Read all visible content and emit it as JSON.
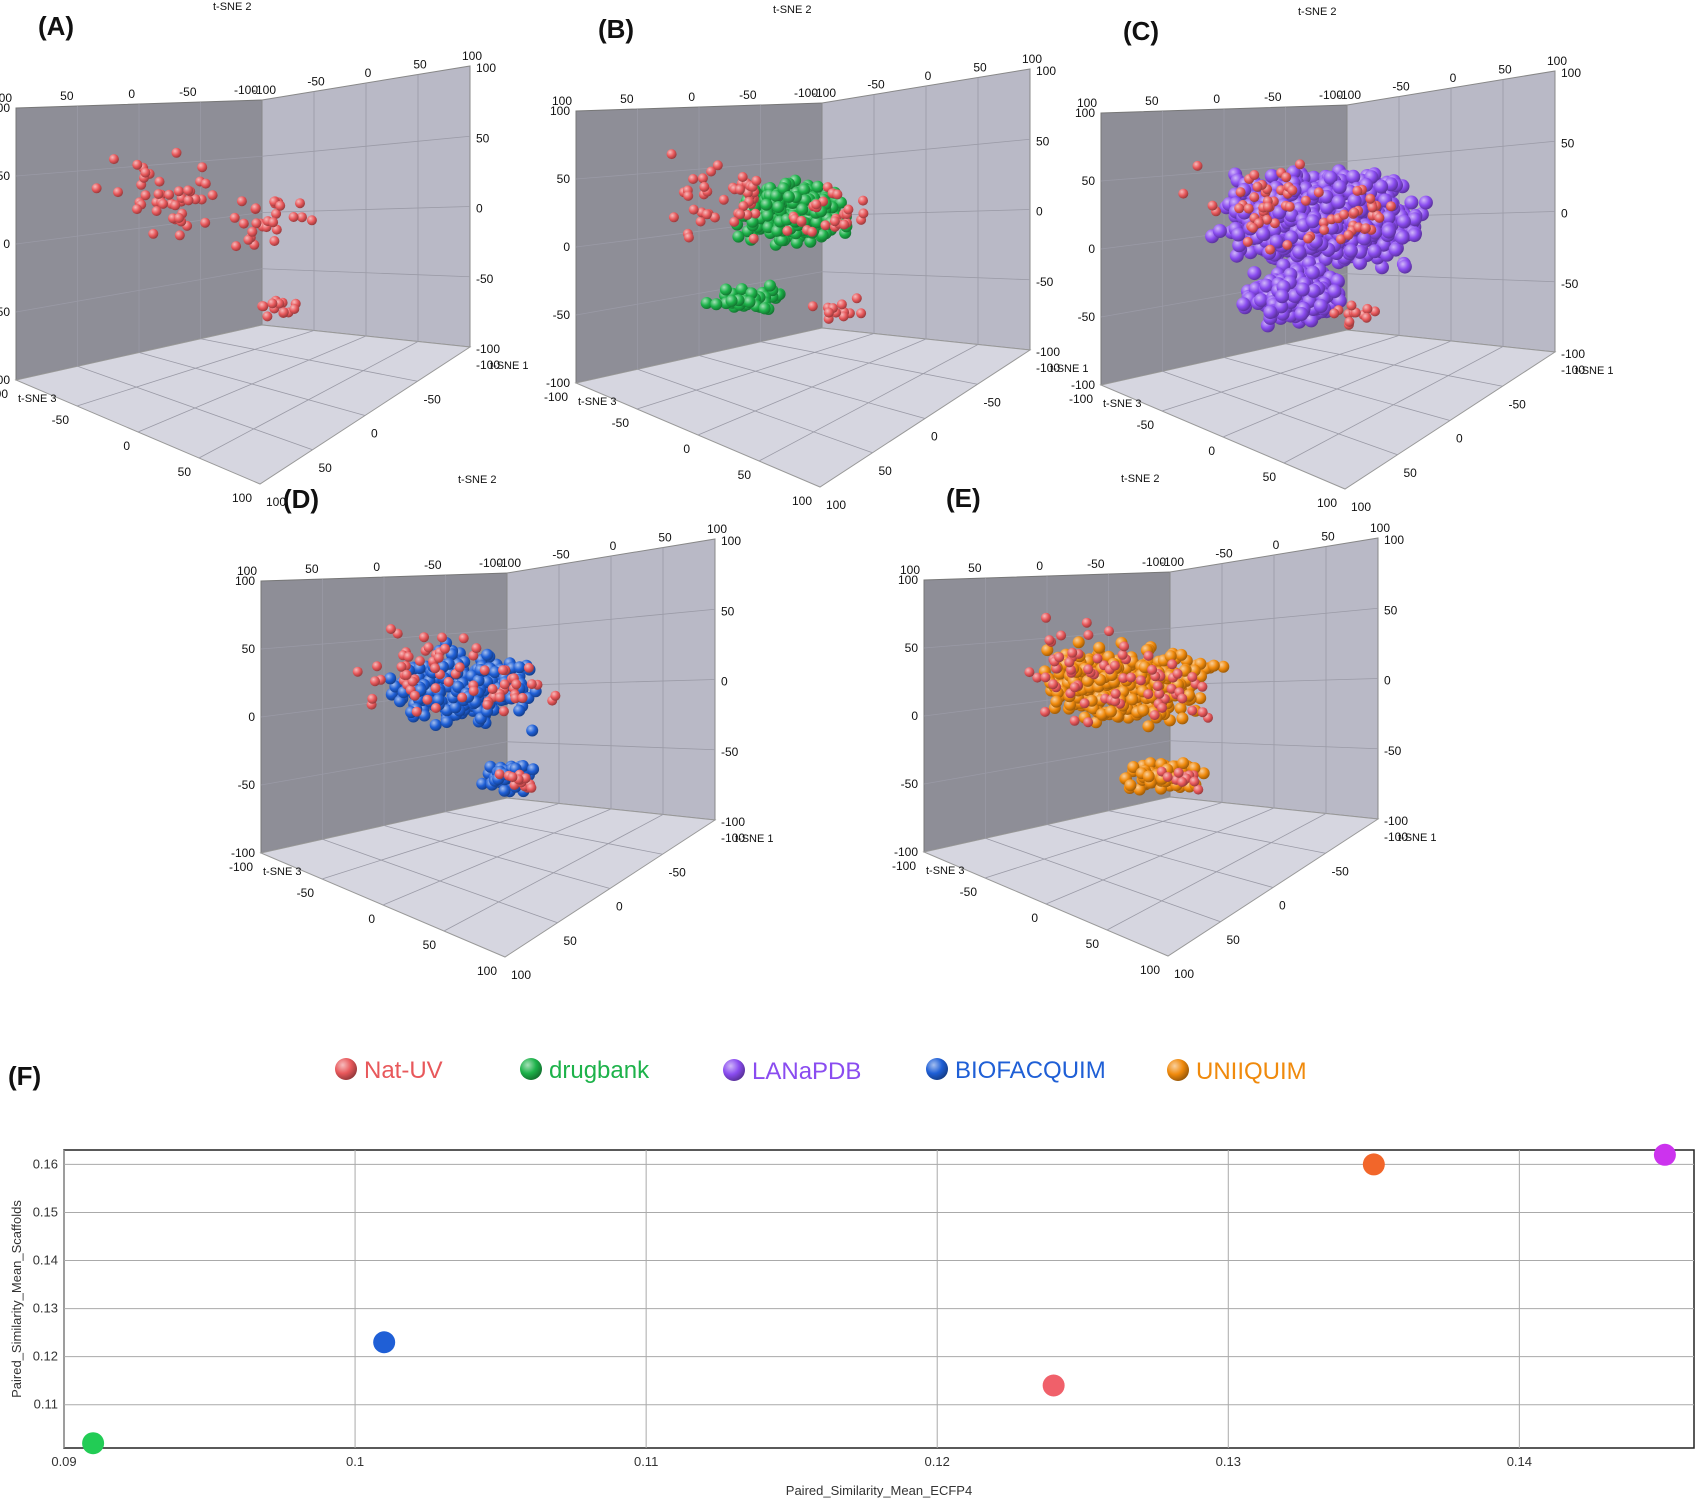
{
  "colors": {
    "Nat-UV": "#e8585b",
    "drugbank": "#1db24a",
    "LANaPDB": "#8a4cf0",
    "BIOFACQUIM": "#1f5fd6",
    "UNIIQUIM": "#f08a0c"
  },
  "tsne_axes": {
    "x_name": "t-SNE 1",
    "y_name": "t-SNE 2",
    "z_name": "t-SNE 3",
    "ticks": [
      "-100",
      "-50",
      "0",
      "50",
      "100"
    ],
    "range": [
      -100,
      100
    ]
  },
  "panels": [
    {
      "letter": "(A)",
      "datasets": [
        "Nat-UV"
      ]
    },
    {
      "letter": "(B)",
      "datasets": [
        "drugbank",
        "Nat-UV"
      ]
    },
    {
      "letter": "(C)",
      "datasets": [
        "LANaPDB",
        "Nat-UV"
      ]
    },
    {
      "letter": "(D)",
      "datasets": [
        "BIOFACQUIM",
        "Nat-UV"
      ]
    },
    {
      "letter": "(E)",
      "datasets": [
        "UNIIQUIM",
        "Nat-UV"
      ]
    }
  ],
  "panel_f_letter": "(F)",
  "legend": [
    {
      "name": "Nat-UV",
      "color": "#e8585b"
    },
    {
      "name": "drugbank",
      "color": "#1db24a"
    },
    {
      "name": "LANaPDB",
      "color": "#8a4cf0"
    },
    {
      "name": "BIOFACQUIM",
      "color": "#1f5fd6"
    },
    {
      "name": "UNIIQUIM",
      "color": "#f08a0c"
    }
  ],
  "chart_data": [
    {
      "type": "scatter",
      "xlabel": "Paired_Similarity_Mean_ECFP4",
      "ylabel": "Paired_Similarity_Mean_Scaffolds",
      "xlim": [
        0.09,
        0.146
      ],
      "ylim": [
        0.101,
        0.163
      ],
      "xticks": [
        0.09,
        0.1,
        0.11,
        0.12,
        0.13,
        0.14
      ],
      "yticks": [
        0.11,
        0.12,
        0.13,
        0.14,
        0.15,
        0.16
      ],
      "grid": true,
      "points": [
        {
          "name": "drugbank",
          "x": 0.091,
          "y": 0.102,
          "color": "#22cc55"
        },
        {
          "name": "BIOFACQUIM",
          "x": 0.101,
          "y": 0.123,
          "color": "#1f5fd6"
        },
        {
          "name": "Nat-UV",
          "x": 0.124,
          "y": 0.114,
          "color": "#f0606a"
        },
        {
          "name": "UNIIQUIM",
          "x": 0.135,
          "y": 0.16,
          "color": "#f2662a"
        },
        {
          "name": "LANaPDB",
          "x": 0.145,
          "y": 0.162,
          "color": "#cc33ee"
        }
      ]
    }
  ]
}
